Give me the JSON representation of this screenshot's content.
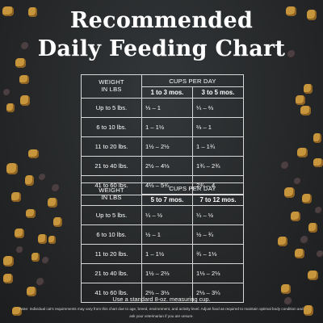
{
  "title": {
    "line1": "Recommended",
    "line2": "Daily Feeding Chart"
  },
  "table1": {
    "weight_header": [
      "WEIGHT",
      "IN LBS"
    ],
    "cups_header": "CUPS PER DAY",
    "age_headers": [
      "1 to 3 mos.",
      "3 to 5 mos."
    ],
    "rows": [
      {
        "weight": "Up to 5 lbs.",
        "a": "⅓ – 1",
        "b": "¼ – ⅔"
      },
      {
        "weight": "6 to 10 lbs.",
        "a": "1 – 1½",
        "b": "⅔ – 1"
      },
      {
        "weight": "11 to 20 lbs.",
        "a": "1½ – 2½",
        "b": "1 – 1¾"
      },
      {
        "weight": "21 to 40 lbs.",
        "a": "2½ – 4⅓",
        "b": "1¾ – 2¾"
      },
      {
        "weight": "41 to 60 lbs.",
        "a": "4⅓ – 5¾",
        "b": "2¾ – 4"
      }
    ]
  },
  "table2": {
    "weight_header": [
      "WEIGHT",
      "IN LBS"
    ],
    "cups_header": "CUPS PER DAY",
    "age_headers": [
      "5 to 7 mos.",
      "7 to 12 mos."
    ],
    "rows": [
      {
        "weight": "Up to 5 lbs.",
        "a": "¼ – ½",
        "b": "¼ – ½"
      },
      {
        "weight": "6 to 10 lbs.",
        "a": "½ – 1",
        "b": "½ – ¾"
      },
      {
        "weight": "11 to 20 lbs.",
        "a": "1 – 1½",
        "b": "¾ – 1⅓"
      },
      {
        "weight": "21 to 40 lbs.",
        "a": "1½ – 2⅔",
        "b": "1⅓ – 2⅓"
      },
      {
        "weight": "41 to 60 lbs.",
        "a": "2⅔ – 3⅓",
        "b": "2⅓ – 3¼"
      }
    ]
  },
  "measure_note": "Use a standard 8-oz. measuring cup.",
  "footnote": "Note: Individual cat's requirements may vary from this chart due to age, breed, environment, and activity level. Adjust food as required to maintain optimal body condition and ask your veterinarian if you are unsure.",
  "colors": {
    "background": "#232425",
    "kibble_tan": "#c7953b",
    "kibble_dark": "#4b3f41",
    "text": "#ffffff"
  }
}
